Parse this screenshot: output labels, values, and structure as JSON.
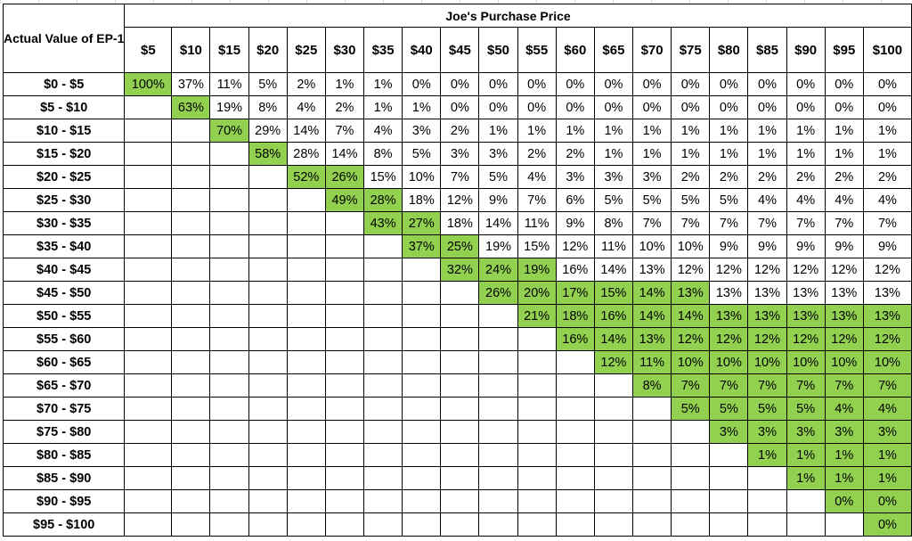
{
  "corner_label": "Actual Value of EP-1",
  "header_title": "Joe's Purchase Price",
  "highlight_color": "#92d050",
  "columns": [
    "$5",
    "$10",
    "$15",
    "$20",
    "$25",
    "$30",
    "$35",
    "$40",
    "$45",
    "$50",
    "$55",
    "$60",
    "$65",
    "$70",
    "$75",
    "$80",
    "$85",
    "$90",
    "$95",
    "$100"
  ],
  "rows": [
    {
      "label": "$0 - $5",
      "highlighted": 1,
      "cells": [
        "100%",
        "37%",
        "11%",
        "5%",
        "2%",
        "1%",
        "1%",
        "0%",
        "0%",
        "0%",
        "0%",
        "0%",
        "0%",
        "0%",
        "0%",
        "0%",
        "0%",
        "0%",
        "0%",
        "0%"
      ]
    },
    {
      "label": "$5 - $10",
      "highlighted": 1,
      "cells": [
        "63%",
        "19%",
        "8%",
        "4%",
        "2%",
        "1%",
        "1%",
        "0%",
        "0%",
        "0%",
        "0%",
        "0%",
        "0%",
        "0%",
        "0%",
        "0%",
        "0%",
        "0%",
        "0%"
      ]
    },
    {
      "label": "$10 - $15",
      "highlighted": 1,
      "cells": [
        "70%",
        "29%",
        "14%",
        "7%",
        "4%",
        "3%",
        "2%",
        "1%",
        "1%",
        "1%",
        "1%",
        "1%",
        "1%",
        "1%",
        "1%",
        "1%",
        "1%",
        "1%"
      ]
    },
    {
      "label": "$15 - $20",
      "highlighted": 1,
      "cells": [
        "58%",
        "28%",
        "14%",
        "8%",
        "5%",
        "3%",
        "3%",
        "2%",
        "2%",
        "1%",
        "1%",
        "1%",
        "1%",
        "1%",
        "1%",
        "1%",
        "1%"
      ]
    },
    {
      "label": "$20 - $25",
      "highlighted": 2,
      "cells": [
        "52%",
        "26%",
        "15%",
        "10%",
        "7%",
        "5%",
        "4%",
        "3%",
        "3%",
        "3%",
        "2%",
        "2%",
        "2%",
        "2%",
        "2%",
        "2%"
      ]
    },
    {
      "label": "$25 - $30",
      "highlighted": 2,
      "cells": [
        "49%",
        "28%",
        "18%",
        "12%",
        "9%",
        "7%",
        "6%",
        "5%",
        "5%",
        "5%",
        "5%",
        "4%",
        "4%",
        "4%",
        "4%"
      ]
    },
    {
      "label": "$30 - $35",
      "highlighted": 2,
      "cells": [
        "43%",
        "27%",
        "18%",
        "14%",
        "11%",
        "9%",
        "8%",
        "7%",
        "7%",
        "7%",
        "7%",
        "7%",
        "7%",
        "7%"
      ]
    },
    {
      "label": "$35 - $40",
      "highlighted": 2,
      "cells": [
        "37%",
        "25%",
        "19%",
        "15%",
        "12%",
        "11%",
        "10%",
        "10%",
        "9%",
        "9%",
        "9%",
        "9%",
        "9%"
      ]
    },
    {
      "label": "$40 - $45",
      "highlighted": 3,
      "cells": [
        "32%",
        "24%",
        "19%",
        "16%",
        "14%",
        "13%",
        "12%",
        "12%",
        "12%",
        "12%",
        "12%",
        "12%"
      ]
    },
    {
      "label": "$45 - $50",
      "highlighted": 6,
      "cells": [
        "26%",
        "20%",
        "17%",
        "15%",
        "14%",
        "13%",
        "13%",
        "13%",
        "13%",
        "13%",
        "13%"
      ]
    },
    {
      "label": "$50 - $55",
      "highlighted": 10,
      "cells": [
        "21%",
        "18%",
        "16%",
        "14%",
        "14%",
        "13%",
        "13%",
        "13%",
        "13%",
        "13%"
      ]
    },
    {
      "label": "$55 - $60",
      "highlighted": 9,
      "cells": [
        "16%",
        "14%",
        "13%",
        "12%",
        "12%",
        "12%",
        "12%",
        "12%",
        "12%"
      ]
    },
    {
      "label": "$60 - $65",
      "highlighted": 8,
      "cells": [
        "12%",
        "11%",
        "10%",
        "10%",
        "10%",
        "10%",
        "10%",
        "10%"
      ]
    },
    {
      "label": "$65 - $70",
      "highlighted": 7,
      "cells": [
        "8%",
        "7%",
        "7%",
        "7%",
        "7%",
        "7%",
        "7%"
      ]
    },
    {
      "label": "$70 - $75",
      "highlighted": 6,
      "cells": [
        "5%",
        "5%",
        "5%",
        "5%",
        "4%",
        "4%"
      ]
    },
    {
      "label": "$75 - $80",
      "highlighted": 5,
      "cells": [
        "3%",
        "3%",
        "3%",
        "3%",
        "3%"
      ]
    },
    {
      "label": "$80 - $85",
      "highlighted": 4,
      "cells": [
        "1%",
        "1%",
        "1%",
        "1%"
      ]
    },
    {
      "label": "$85 - $90",
      "highlighted": 3,
      "cells": [
        "1%",
        "1%",
        "1%"
      ]
    },
    {
      "label": "$90 - $95",
      "highlighted": 2,
      "cells": [
        "0%",
        "0%"
      ]
    },
    {
      "label": "$95 - $100",
      "highlighted": 1,
      "cells": [
        "0%"
      ]
    }
  ]
}
